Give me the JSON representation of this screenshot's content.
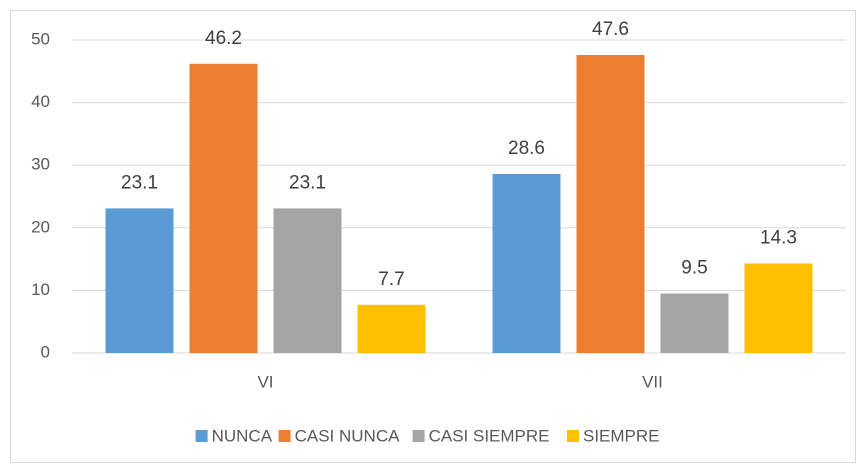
{
  "chart_data": {
    "type": "bar",
    "categories": [
      "VI",
      "VII"
    ],
    "series": [
      {
        "name": "NUNCA",
        "color": "#5b9bd5",
        "values": [
          23.1,
          28.6
        ]
      },
      {
        "name": "CASI NUNCA",
        "color": "#ed7d31",
        "values": [
          46.2,
          47.6
        ]
      },
      {
        "name": "CASI SIEMPRE",
        "color": "#a5a5a5",
        "values": [
          23.1,
          9.5
        ]
      },
      {
        "name": "SIEMPRE",
        "color": "#ffc000",
        "values": [
          7.7,
          14.3
        ]
      }
    ],
    "ylim": [
      0,
      50
    ],
    "yticks": [
      0,
      10,
      20,
      30,
      40,
      50
    ],
    "grid": true,
    "legend": "bottom"
  }
}
